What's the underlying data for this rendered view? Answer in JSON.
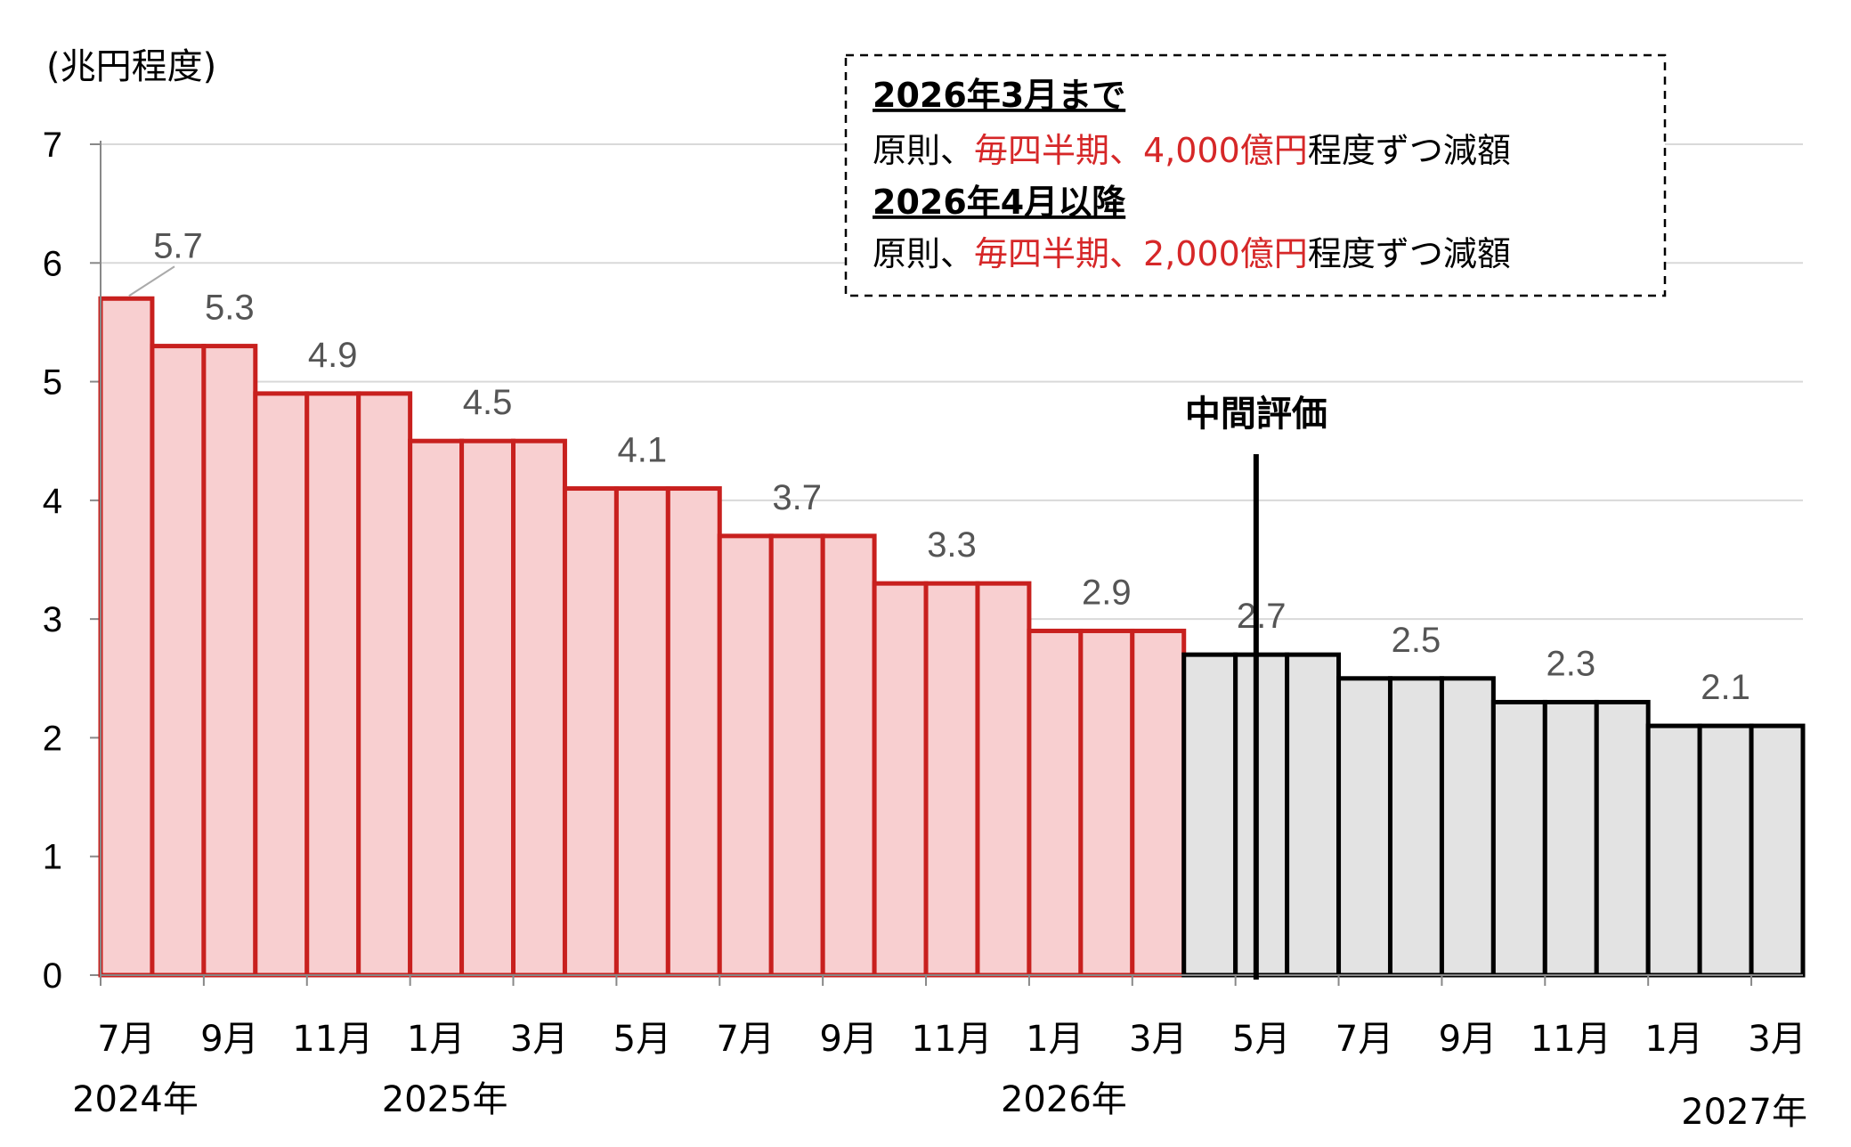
{
  "chart_data": {
    "type": "bar",
    "ylabel": "(兆円程度)",
    "ylim": [
      0,
      7
    ],
    "yticks": [
      0,
      1,
      2,
      3,
      4,
      5,
      6,
      7
    ],
    "grid": true,
    "months": [
      "7月",
      "8月",
      "9月",
      "10月",
      "11月",
      "12月",
      "1月",
      "2月",
      "3月",
      "4月",
      "5月",
      "6月",
      "7月",
      "8月",
      "9月",
      "10月",
      "11月",
      "12月",
      "1月",
      "2月",
      "3月",
      "4月",
      "5月",
      "6月",
      "7月",
      "8月",
      "9月",
      "10月",
      "11月",
      "12月",
      "1月",
      "2月",
      "3月"
    ],
    "tick_labels": [
      {
        "index": 0,
        "label": "7月",
        "year": "2024年"
      },
      {
        "index": 2,
        "label": "9月"
      },
      {
        "index": 4,
        "label": "11月"
      },
      {
        "index": 6,
        "label": "1月",
        "year": "2025年"
      },
      {
        "index": 8,
        "label": "3月"
      },
      {
        "index": 10,
        "label": "5月"
      },
      {
        "index": 12,
        "label": "7月"
      },
      {
        "index": 14,
        "label": "9月"
      },
      {
        "index": 16,
        "label": "11月"
      },
      {
        "index": 18,
        "label": "1月",
        "year": "2026年"
      },
      {
        "index": 20,
        "label": "3月"
      },
      {
        "index": 22,
        "label": "5月"
      },
      {
        "index": 24,
        "label": "7月"
      },
      {
        "index": 26,
        "label": "9月"
      },
      {
        "index": 28,
        "label": "11月"
      },
      {
        "index": 30,
        "label": "1月"
      },
      {
        "index": 32,
        "label": "3月",
        "year": "2027年"
      }
    ],
    "values": [
      5.7,
      5.3,
      5.3,
      4.9,
      4.9,
      4.9,
      4.5,
      4.5,
      4.5,
      4.1,
      4.1,
      4.1,
      3.7,
      3.7,
      3.7,
      3.3,
      3.3,
      3.3,
      2.9,
      2.9,
      2.9,
      2.7,
      2.7,
      2.7,
      2.5,
      2.5,
      2.5,
      2.3,
      2.3,
      2.3,
      2.1,
      2.1,
      2.1
    ],
    "red_until_index": 20,
    "colors": {
      "red_fill": "#f8cfd0",
      "red_edge": "#c8201e",
      "gray_fill": "#e3e3e3",
      "gray_edge": "#000000",
      "grid": "#d9d9d9",
      "value_text": "#555555",
      "highlight_text": "#d62728"
    },
    "value_labels": [
      {
        "index": 0,
        "text": "5.7"
      },
      {
        "index": 2,
        "text": "5.3"
      },
      {
        "index": 4,
        "text": "4.9"
      },
      {
        "index": 7,
        "text": "4.5"
      },
      {
        "index": 10,
        "text": "4.1"
      },
      {
        "index": 13,
        "text": "3.7"
      },
      {
        "index": 16,
        "text": "3.3"
      },
      {
        "index": 19,
        "text": "2.9"
      },
      {
        "index": 22,
        "text": "2.7"
      },
      {
        "index": 25,
        "text": "2.5"
      },
      {
        "index": 28,
        "text": "2.3"
      },
      {
        "index": 31,
        "text": "2.1"
      }
    ],
    "midterm": {
      "label": "中間評価",
      "after_index": 23
    },
    "annotation": {
      "heading1": "2026年3月まで",
      "line1": {
        "pre": "原則、",
        "red": "毎四半期、4,000億円",
        "post": "程度ずつ減額"
      },
      "heading2": "2026年4月以降",
      "line2": {
        "pre": "原則、",
        "red": "毎四半期、2,000億円",
        "post": "程度ずつ減額"
      }
    }
  }
}
